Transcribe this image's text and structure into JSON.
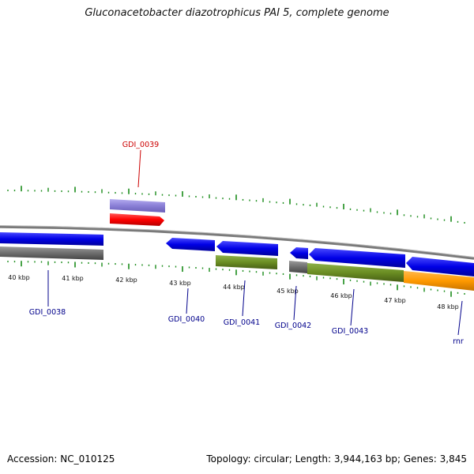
{
  "title": "Gluconacetobacter diazotrophicus PAI 5, complete genome",
  "footer": {
    "accession": "Accession: NC_010125",
    "summary": "Topology: circular; Length: 3,944,163 bp; Genes: 3,845"
  },
  "colors": {
    "cds_blue": "#0000e6",
    "gray_feature": "#6e6e6e",
    "green_feature": "#6b8e23",
    "orange_feature": "#ff9900",
    "red_feature": "#ff0000",
    "lavender_feature": "#8a7fd6",
    "tick_green": "#1a8c1a",
    "label_blue": "#00008b",
    "label_red": "#cc0000"
  },
  "scale": {
    "unit": "kbp",
    "ticks": [
      "40 kbp",
      "41 kbp",
      "42 kbp",
      "43 kbp",
      "44 kbp",
      "45 kbp",
      "46 kbp",
      "47 kbp",
      "48 kbp"
    ]
  },
  "gene_labels": [
    {
      "name": "GDI_0039",
      "color": "red"
    },
    {
      "name": "GDI_0038",
      "color": "blue"
    },
    {
      "name": "GDI_0040",
      "color": "blue"
    },
    {
      "name": "GDI_0041",
      "color": "blue"
    },
    {
      "name": "GDI_0042",
      "color": "blue"
    },
    {
      "name": "GDI_0043",
      "color": "blue"
    },
    {
      "name": "rnr",
      "color": "blue"
    }
  ]
}
